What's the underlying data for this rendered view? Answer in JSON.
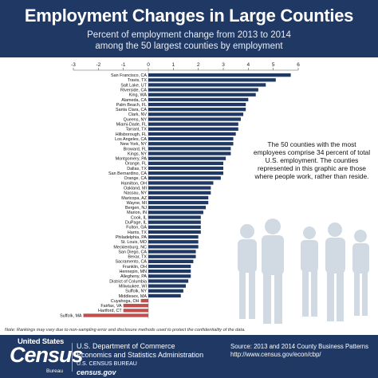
{
  "header": {
    "title": "Employment Changes in Large Counties",
    "subtitle_line1": "Percent of employment change from 2013 to 2014",
    "subtitle_line2": "among the 50 largest counties by employment"
  },
  "chart_data": {
    "type": "bar",
    "orientation": "horizontal",
    "xlim": [
      -3,
      6
    ],
    "xticks": [
      -3,
      -2,
      -1,
      0,
      1,
      2,
      3,
      4,
      5,
      6
    ],
    "categories": [
      "San Francisco, CA",
      "Travis, TX",
      "Salt Lake, UT",
      "Riverside, CA",
      "King, WA",
      "Alameda, CA",
      "Palm Beach, FL",
      "Santa Clara, CA",
      "Clark, NV",
      "Queens, NY",
      "Miami-Dade, FL",
      "Tarrant, TX",
      "Hillsborough, FL",
      "Los Angeles, CA",
      "New York, NY",
      "Broward, FL",
      "Kings, NY",
      "Montgomery, PA",
      "Orange, FL",
      "Dallas, TX",
      "San Bernardino, CA",
      "Orange, CA",
      "Hamilton, OH",
      "Oakland, MI",
      "Nassau, NY",
      "Maricopa, AZ",
      "Wayne, MI",
      "Bergen, NJ",
      "Marion, IN",
      "Cook, IL",
      "DuPage, IL",
      "Fulton, GA",
      "Harris, TX",
      "Philadelphia, PA",
      "St. Louis, MO",
      "Mecklenburg, NC",
      "San Diego, CA",
      "Bexar, TX",
      "Sacramento, CA",
      "Franklin, OH",
      "Hennepin, MN",
      "Allegheny, PA",
      "District of Columbia",
      "Milwaukee, WI",
      "Suffolk, NY",
      "Middlesex, MA",
      "Cuyahoga, OH",
      "Fairfax, VA",
      "Hartford, CT",
      "Suffolk, MA"
    ],
    "values": [
      5.7,
      5.1,
      4.7,
      4.4,
      4.3,
      4.0,
      3.9,
      3.9,
      3.8,
      3.7,
      3.6,
      3.6,
      3.5,
      3.4,
      3.4,
      3.3,
      3.3,
      3.1,
      3.0,
      3.0,
      3.0,
      2.9,
      2.6,
      2.5,
      2.5,
      2.4,
      2.4,
      2.3,
      2.2,
      2.1,
      2.1,
      2.1,
      2.1,
      2.0,
      2.0,
      2.0,
      1.9,
      1.9,
      1.8,
      1.7,
      1.7,
      1.7,
      1.6,
      1.5,
      1.4,
      1.3,
      -0.3,
      -1.0,
      -1.0,
      -2.6
    ],
    "colors": {
      "positive": "#1f3864",
      "negative": "#c0504d"
    }
  },
  "annotation": "The 50 counties with the most employees comprise 34 percent of total U.S. employment. The counties represented in this graphic are those where people work, rather than reside.",
  "note": "Note: Rankings may vary due to non-sampling error and disclosure methods used to protect the confidentiality of the data.",
  "footer": {
    "logo_top": "United States",
    "logo_main": "Census",
    "logo_bottom": "Bureau",
    "dept_line1": "U.S. Department of Commerce",
    "dept_line2": "Economics and Statistics Administration",
    "dept_line3": "U.S. CENSUS BUREAU",
    "dept_url": "census.gov",
    "source_line1": "Source: 2013 and 2014 County Business Patterns",
    "source_line2": "http://www.census.gov/econ/cbp/"
  }
}
